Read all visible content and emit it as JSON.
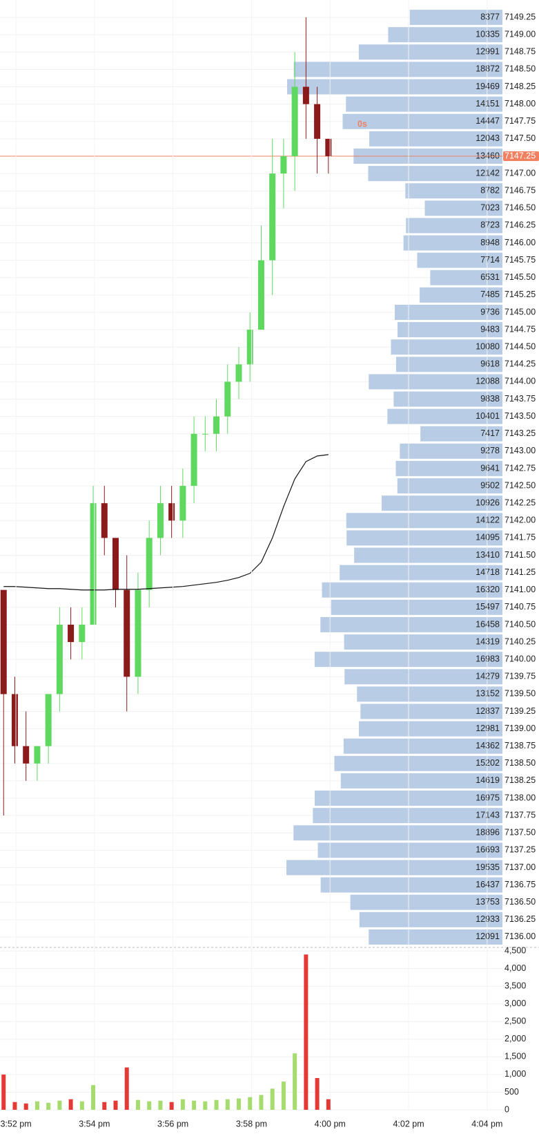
{
  "chart_data": [
    {
      "type": "candlestick",
      "open": [
        7141,
        7139.5,
        7138.75,
        7138.5,
        7138.75,
        7139.5,
        7140.5,
        7140.25,
        7140.5,
        7142.25,
        7141.75,
        7141,
        7139.75,
        7141,
        7141.75,
        7142.25,
        7142,
        7142.5,
        7143.25,
        7143.25,
        7143.5,
        7144,
        7144.25,
        7144.75,
        7145.75,
        7147,
        7147.25,
        7148.25,
        7148,
        7147.5
      ],
      "high": [
        7141,
        7139.75,
        7139.25,
        7138.75,
        7139.5,
        7140.75,
        7140.75,
        7140.75,
        7142.5,
        7142.5,
        7141.75,
        7141.5,
        7141.25,
        7142,
        7142.5,
        7142.5,
        7142.75,
        7143.5,
        7143.5,
        7143.75,
        7144.25,
        7144.5,
        7145,
        7146.25,
        7147.5,
        7147.5,
        7148.75,
        7149.25,
        7148.25,
        7147.5
      ],
      "low": [
        7137.75,
        7138.5,
        7138.25,
        7138.25,
        7138.5,
        7139.25,
        7140,
        7140,
        7140.5,
        7141.5,
        7140.75,
        7139.25,
        7139.5,
        7140.75,
        7141.5,
        7141.75,
        7141.75,
        7142.25,
        7143,
        7143,
        7143.25,
        7143.75,
        7144,
        7144.75,
        7145.25,
        7146.5,
        7146.75,
        7147.5,
        7147,
        7147
      ],
      "close": [
        7139.5,
        7138.75,
        7138.5,
        7138.75,
        7139.5,
        7140.5,
        7140.25,
        7140.5,
        7142.25,
        7141.75,
        7141,
        7139.75,
        7141,
        7141.75,
        7142.25,
        7142,
        7142.5,
        7143.25,
        7143.25,
        7143.5,
        7144,
        7144.25,
        7144.75,
        7145.75,
        7147,
        7147.25,
        7148.25,
        7148,
        7147.5,
        7147.25
      ],
      "up_color": "#5fd85f",
      "down_color": "#8b1a1a",
      "line": {
        "color": "#111111",
        "values": [
          7141.05,
          7141.05,
          7141.04,
          7141.03,
          7141.02,
          7141.02,
          7141.01,
          7141.0,
          7141.0,
          7141.0,
          7141.01,
          7141.01,
          7141.01,
          7141.02,
          7141.03,
          7141.04,
          7141.05,
          7141.07,
          7141.09,
          7141.11,
          7141.14,
          7141.18,
          7141.24,
          7141.4,
          7141.75,
          7142.2,
          7142.6,
          7142.85,
          7142.93,
          7142.95
        ]
      },
      "ylim": [
        7135.85,
        7149.5
      ],
      "yticks": [
        {
          "value": 7149.25,
          "label": "7149.25"
        },
        {
          "value": 7149,
          "label": "7149.00"
        },
        {
          "value": 7148.75,
          "label": "7148.75"
        },
        {
          "value": 7148.5,
          "label": "7148.50"
        },
        {
          "value": 7148.25,
          "label": "7148.25"
        },
        {
          "value": 7148,
          "label": "7148.00"
        },
        {
          "value": 7147.75,
          "label": "7147.75"
        },
        {
          "value": 7147.5,
          "label": "7147.50"
        },
        {
          "value": 7147.25,
          "label": "7147.25"
        },
        {
          "value": 7147,
          "label": "7147.00"
        },
        {
          "value": 7146.75,
          "label": "7146.75"
        },
        {
          "value": 7146.5,
          "label": "7146.50"
        },
        {
          "value": 7146.25,
          "label": "7146.25"
        },
        {
          "value": 7146,
          "label": "7146.00"
        },
        {
          "value": 7145.75,
          "label": "7145.75"
        },
        {
          "value": 7145.5,
          "label": "7145.50"
        },
        {
          "value": 7145.25,
          "label": "7145.25"
        },
        {
          "value": 7145,
          "label": "7145.00"
        },
        {
          "value": 7144.75,
          "label": "7144.75"
        },
        {
          "value": 7144.5,
          "label": "7144.50"
        },
        {
          "value": 7144.25,
          "label": "7144.25"
        },
        {
          "value": 7144,
          "label": "7144.00"
        },
        {
          "value": 7143.75,
          "label": "7143.75"
        },
        {
          "value": 7143.5,
          "label": "7143.50"
        },
        {
          "value": 7143.25,
          "label": "7143.25"
        },
        {
          "value": 7143,
          "label": "7143.00"
        },
        {
          "value": 7142.75,
          "label": "7142.75"
        },
        {
          "value": 7142.5,
          "label": "7142.50"
        },
        {
          "value": 7142.25,
          "label": "7142.25"
        },
        {
          "value": 7142,
          "label": "7142.00"
        },
        {
          "value": 7141.75,
          "label": "7141.75"
        },
        {
          "value": 7141.5,
          "label": "7141.50"
        },
        {
          "value": 7141.25,
          "label": "7141.25"
        },
        {
          "value": 7141,
          "label": "7141.00"
        },
        {
          "value": 7140.75,
          "label": "7140.75"
        },
        {
          "value": 7140.5,
          "label": "7140.50"
        },
        {
          "value": 7140.25,
          "label": "7140.25"
        },
        {
          "value": 7140,
          "label": "7140.00"
        },
        {
          "value": 7139.75,
          "label": "7139.75"
        },
        {
          "value": 7139.5,
          "label": "7139.50"
        },
        {
          "value": 7139.25,
          "label": "7139.25"
        },
        {
          "value": 7139,
          "label": "7139.00"
        },
        {
          "value": 7138.75,
          "label": "7138.75"
        },
        {
          "value": 7138.5,
          "label": "7138.50"
        },
        {
          "value": 7138.25,
          "label": "7138.25"
        },
        {
          "value": 7138,
          "label": "7138.00"
        },
        {
          "value": 7137.75,
          "label": "7137.75"
        },
        {
          "value": 7137.5,
          "label": "7137.50"
        },
        {
          "value": 7137.25,
          "label": "7137.25"
        },
        {
          "value": 7137,
          "label": "7137.00"
        },
        {
          "value": 7136.75,
          "label": "7136.75"
        },
        {
          "value": 7136.5,
          "label": "7136.50"
        },
        {
          "value": 7136.25,
          "label": "7136.25"
        },
        {
          "value": 7136,
          "label": "7136.00"
        }
      ],
      "profile": {
        "color": "#b8cce6",
        "values": [
          8377,
          10335,
          12991,
          18872,
          19469,
          14151,
          14447,
          12043,
          13460,
          12142,
          8782,
          7023,
          8723,
          8948,
          7714,
          6531,
          7485,
          9736,
          9483,
          10080,
          9618,
          12088,
          9838,
          10401,
          7417,
          9278,
          9641,
          9502,
          10926,
          14122,
          14095,
          13410,
          14718,
          16320,
          15497,
          16458,
          14319,
          16983,
          14279,
          13152,
          12837,
          12981,
          14362,
          15202,
          14619,
          16975,
          17143,
          18896,
          16693,
          19535,
          16437,
          13753,
          12933,
          12091
        ]
      },
      "current_price": {
        "value": 7147.25,
        "label": "7147.25",
        "color": "#f08060"
      },
      "annotation": "0s"
    },
    {
      "type": "bar",
      "values": [
        1000,
        220,
        180,
        240,
        200,
        260,
        300,
        240,
        700,
        220,
        260,
        1200,
        280,
        240,
        260,
        220,
        300,
        260,
        240,
        280,
        300,
        320,
        360,
        420,
        600,
        800,
        1600,
        4400,
        900,
        300
      ],
      "up_color": "#a6dc6e",
      "down_color": "#e53935",
      "ylim": [
        0,
        4600
      ],
      "yticks": [
        0,
        500,
        {
          "value": 1000,
          "label": "1,000"
        },
        {
          "value": 1500,
          "label": "1,500"
        },
        {
          "value": 2000,
          "label": "2,000"
        },
        {
          "value": 2500,
          "label": "2,500"
        },
        {
          "value": 3000,
          "label": "3,000"
        },
        {
          "value": 3500,
          "label": "3,500"
        },
        {
          "value": 4000,
          "label": "4,000"
        },
        {
          "value": 4500,
          "label": "4,500"
        }
      ],
      "xtick_labels": [
        "3:52 pm",
        "3:54 pm",
        "3:56 pm",
        "3:58 pm",
        "4:00 pm",
        "4:02 pm",
        "4:04 pm"
      ]
    }
  ]
}
